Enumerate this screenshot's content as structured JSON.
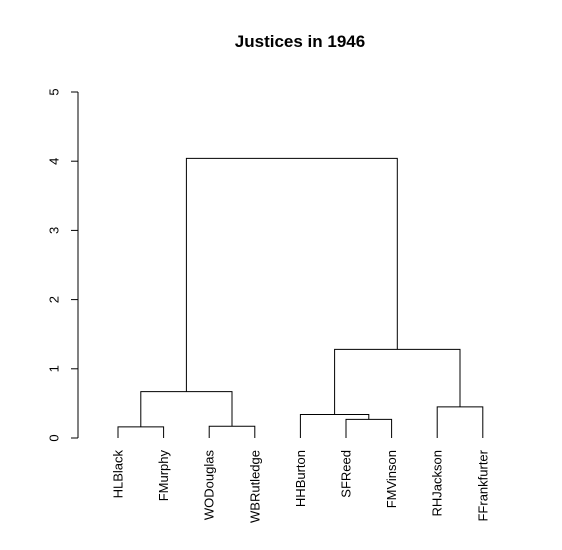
{
  "chart_data": {
    "type": "dendrogram",
    "title": "Justices in 1946",
    "xlabel": "",
    "ylabel": "",
    "ylim": [
      0,
      5
    ],
    "yticks": [
      "0",
      "1",
      "2",
      "3",
      "4",
      "5"
    ],
    "leaves": [
      "HLBlack",
      "FMurphy",
      "WODouglas",
      "WBRutledge",
      "HHBurton",
      "SFReed",
      "FMVinson",
      "RHJackson",
      "FFrankfurter"
    ],
    "merges": [
      {
        "left": -1,
        "right": -2,
        "height": 0.16
      },
      {
        "left": -3,
        "right": -4,
        "height": 0.17
      },
      {
        "left": -6,
        "right": -7,
        "height": 0.27
      },
      {
        "left": -5,
        "right": 3,
        "height": 0.34
      },
      {
        "left": -8,
        "right": -9,
        "height": 0.45
      },
      {
        "left": 1,
        "right": 2,
        "height": 0.67
      },
      {
        "left": 4,
        "right": 5,
        "height": 1.28
      },
      {
        "left": 6,
        "right": 7,
        "height": 4.04
      }
    ],
    "grid": false,
    "legend": "none"
  }
}
